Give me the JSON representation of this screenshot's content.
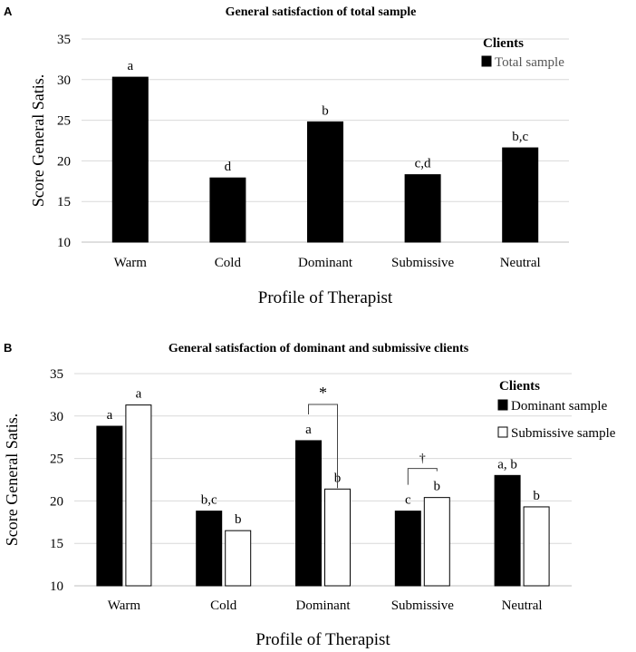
{
  "chart_data": [
    {
      "panel": "A",
      "type": "bar",
      "title": "General satisfaction of total sample",
      "xlabel": "Profile of Therapist",
      "ylabel": "Score General Satis.",
      "ylim": [
        10,
        35
      ],
      "yticks": [
        10,
        15,
        20,
        25,
        30,
        35
      ],
      "grid": true,
      "categories": [
        "Warm",
        "Cold",
        "Dominant",
        "Submissive",
        "Neutral"
      ],
      "legend": {
        "title": "Clients",
        "position": "top-right"
      },
      "series": [
        {
          "name": "Total sample",
          "color": "#000000",
          "values": [
            30.3,
            17.9,
            24.8,
            18.3,
            21.6
          ],
          "labels": [
            "a",
            "d",
            "b",
            "c,d",
            "b,c"
          ]
        }
      ],
      "annotations": []
    },
    {
      "panel": "B",
      "type": "bar",
      "title": "General satisfaction of dominant and submissive clients",
      "xlabel": "Profile of Therapist",
      "ylabel": "Score General Satis.",
      "ylim": [
        10,
        35
      ],
      "yticks": [
        10,
        15,
        20,
        25,
        30,
        35
      ],
      "grid": true,
      "categories": [
        "Warm",
        "Cold",
        "Dominant",
        "Submissive",
        "Neutral"
      ],
      "legend": {
        "title": "Clients",
        "position": "top-right"
      },
      "series": [
        {
          "name": "Dominant sample",
          "color": "#000000",
          "values": [
            28.8,
            18.8,
            27.1,
            18.8,
            23.0
          ],
          "labels": [
            "a",
            "b,c",
            "a",
            "c",
            "a, b"
          ]
        },
        {
          "name": "Submissive sample",
          "color": "#ffffff",
          "values": [
            31.3,
            16.5,
            21.4,
            20.4,
            19.3
          ],
          "labels": [
            "a",
            "b",
            "b",
            "b",
            "b"
          ]
        }
      ],
      "annotations": [
        {
          "category": "Dominant",
          "symbol": "*"
        },
        {
          "category": "Submissive",
          "symbol": "†"
        }
      ]
    }
  ]
}
